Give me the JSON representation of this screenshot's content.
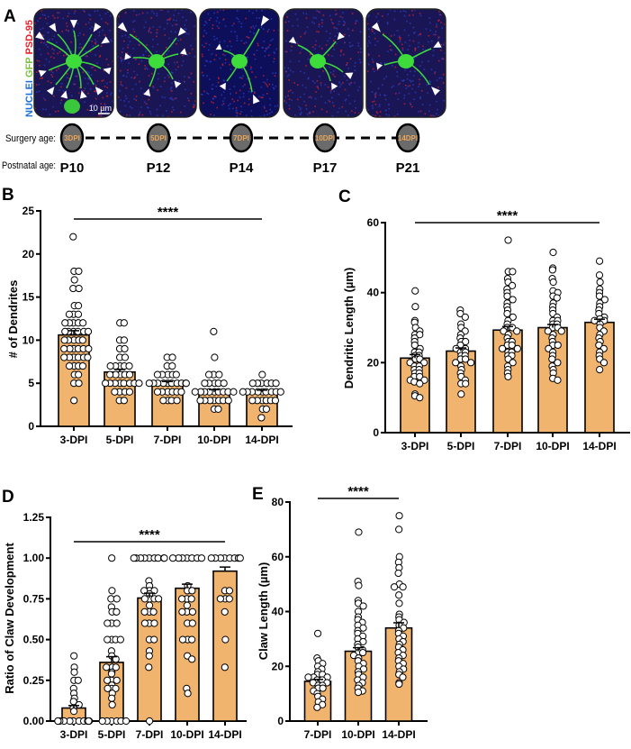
{
  "panel_labels": {
    "a": "A",
    "b": "B",
    "c": "C",
    "d": "D",
    "e": "E"
  },
  "panel_a": {
    "channel_labels": [
      {
        "text": "NUCLEI",
        "color": "#1f6fd8"
      },
      {
        "text": "GFP",
        "color": "#7cc242"
      },
      {
        "text": "PSD-95",
        "color": "#e8202a"
      }
    ],
    "scale_bar": "10 µm",
    "surgery_label": "Surgery age:",
    "postnatal_label": "Postnatal age:",
    "timepoints": [
      {
        "dpi": "3DPI",
        "age": "P10"
      },
      {
        "dpi": "5DPI",
        "age": "P12"
      },
      {
        "dpi": "7DPI",
        "age": "P14"
      },
      {
        "dpi": "10DPI",
        "age": "P17"
      },
      {
        "dpi": "14DPI",
        "age": "P21"
      }
    ]
  },
  "colors": {
    "bar": "#f0b46e",
    "point_fill": "#ffffff",
    "stroke": "#000000",
    "node_fill": "#6b6b6b",
    "node_text": "#e8a55a"
  },
  "chart_data": [
    {
      "id": "b",
      "type": "bar",
      "ylabel": "# of Dendrites",
      "ylim": [
        0,
        25
      ],
      "yticks": [
        "0",
        "5",
        "10",
        "15",
        "20",
        "25"
      ],
      "categories": [
        "3-DPI",
        "5-DPI",
        "7-DPI",
        "10-DPI",
        "14-DPI"
      ],
      "values": [
        10.6,
        6.3,
        5.0,
        4.0,
        4.0
      ],
      "sem": [
        0.5,
        0.3,
        0.2,
        0.25,
        0.2
      ],
      "significance": "****",
      "points": [
        [
          22,
          18,
          18,
          17,
          16,
          16,
          14,
          14,
          13,
          13,
          13,
          12,
          12,
          12,
          12,
          12,
          11,
          11,
          11,
          11,
          11,
          11,
          10,
          10,
          10,
          10,
          10,
          9,
          9,
          9,
          9,
          9,
          9,
          8,
          8,
          8,
          8,
          8,
          8,
          7,
          7,
          7,
          7,
          6,
          6,
          5,
          5,
          3
        ],
        [
          12,
          12,
          10,
          10,
          9,
          9,
          8,
          8,
          7,
          7,
          7,
          7,
          7,
          6,
          6,
          6,
          6,
          6,
          5,
          5,
          5,
          5,
          5,
          5,
          5,
          5,
          4,
          4,
          4,
          4,
          3,
          3
        ],
        [
          8,
          8,
          7,
          7,
          6,
          6,
          6,
          6,
          6,
          5,
          5,
          5,
          5,
          5,
          5,
          5,
          5,
          5,
          5,
          4,
          4,
          4,
          4,
          4,
          4,
          3,
          3,
          3,
          3
        ],
        [
          11,
          8,
          6,
          6,
          6,
          5,
          5,
          5,
          5,
          5,
          4,
          4,
          4,
          4,
          4,
          4,
          4,
          4,
          4,
          3,
          3,
          3,
          3,
          3,
          3,
          3,
          2,
          2
        ],
        [
          6,
          5,
          5,
          5,
          5,
          5,
          5,
          4,
          4,
          4,
          4,
          4,
          4,
          4,
          4,
          4,
          3,
          3,
          3,
          3,
          3,
          3,
          2,
          2,
          1
        ]
      ]
    },
    {
      "id": "c",
      "type": "bar",
      "ylabel": "Dendritic Length (µm)",
      "ylim": [
        0,
        60
      ],
      "yticks": [
        "0",
        "20",
        "40",
        "60"
      ],
      "categories": [
        "3-DPI",
        "5-DPI",
        "7-DPI",
        "10-DPI",
        "14-DPI"
      ],
      "values": [
        21.3,
        23.3,
        29.3,
        30.0,
        31.5
      ],
      "sem": [
        1.0,
        0.9,
        1.0,
        0.9,
        0.9
      ],
      "significance": "****",
      "points": [
        [
          40.5,
          36,
          32,
          31.5,
          30,
          29,
          28,
          28,
          27,
          26,
          25,
          24,
          23,
          23,
          22,
          22,
          21,
          21,
          20,
          20,
          19,
          19,
          18,
          18,
          17,
          17,
          16,
          16,
          15,
          15,
          14.5,
          14,
          11,
          10.5,
          10
        ],
        [
          35,
          34,
          33,
          31,
          30,
          29,
          28,
          27,
          26,
          26,
          25,
          24,
          24,
          23,
          23,
          22,
          22,
          21,
          21,
          20,
          20,
          19,
          18,
          17,
          16,
          15,
          14,
          14,
          11
        ],
        [
          55,
          46,
          46,
          44,
          43,
          42,
          41,
          40,
          39,
          38,
          37,
          36,
          35,
          34,
          33,
          32,
          31,
          30,
          30,
          29,
          29,
          28,
          27,
          26,
          26,
          25,
          25,
          24,
          24,
          23,
          23,
          22,
          22,
          21,
          20,
          19,
          18,
          17,
          16
        ],
        [
          51.5,
          47,
          46.5,
          44,
          43,
          40.5,
          40,
          39,
          38.5,
          37,
          36,
          35,
          34,
          33,
          32,
          32,
          31,
          31,
          30,
          30,
          29,
          29,
          28,
          27,
          26,
          25,
          25,
          24,
          23,
          22,
          21,
          20,
          19,
          18,
          17,
          15.5,
          15
        ],
        [
          49,
          45,
          43,
          41,
          40,
          39,
          38,
          37,
          36,
          35,
          34,
          33,
          32.5,
          32,
          32,
          31,
          30,
          29,
          28,
          27,
          26,
          25,
          24,
          23,
          22,
          21,
          20,
          18
        ]
      ]
    },
    {
      "id": "d",
      "type": "bar",
      "ylabel": "Ratio of Claw Development",
      "ylim": [
        0,
        1.25
      ],
      "yticks": [
        "0.00",
        "0.25",
        "0.50",
        "0.75",
        "1.00",
        "1.25"
      ],
      "categories": [
        "3-DPI",
        "5-DPI",
        "7-DPI",
        "10-DPI",
        "14-DPI"
      ],
      "values": [
        0.08,
        0.36,
        0.755,
        0.815,
        0.92
      ],
      "sem": [
        0.015,
        0.035,
        0.03,
        0.025,
        0.025
      ],
      "significance": "****",
      "points": [
        [
          0.4,
          0.33,
          0.3,
          0.25,
          0.25,
          0.2,
          0.17,
          0.14,
          0.12,
          0.1,
          0.08,
          0.06,
          0,
          0,
          0,
          0,
          0,
          0,
          0,
          0,
          0,
          0,
          0
        ],
        [
          1,
          0.8,
          0.75,
          0.75,
          0.7,
          0.67,
          0.67,
          0.6,
          0.6,
          0.6,
          0.5,
          0.5,
          0.5,
          0.5,
          0.43,
          0.4,
          0.38,
          0.33,
          0.33,
          0.33,
          0.3,
          0.29,
          0.25,
          0.25,
          0.25,
          0.22,
          0.2,
          0.2,
          0.2,
          0.17,
          0.14,
          0.1,
          0,
          0,
          0,
          0,
          0,
          0
        ],
        [
          1,
          1,
          1,
          1,
          1,
          1,
          1,
          1,
          1,
          0.86,
          0.83,
          0.8,
          0.8,
          0.8,
          0.78,
          0.75,
          0.75,
          0.75,
          0.75,
          0.71,
          0.67,
          0.67,
          0.67,
          0.6,
          0.6,
          0.6,
          0.5,
          0.5,
          0.43,
          0.4,
          0.33,
          0
        ],
        [
          1,
          1,
          1,
          1,
          1,
          1,
          1,
          0.83,
          0.8,
          0.8,
          0.75,
          0.75,
          0.75,
          0.71,
          0.67,
          0.67,
          0.67,
          0.6,
          0.6,
          0.5,
          0.5,
          0.5,
          0.4,
          0.38,
          0.2,
          0.17
        ],
        [
          1,
          1,
          1,
          1,
          1,
          1,
          1,
          1,
          0.8,
          0.8,
          0.75,
          0.75,
          0.75,
          0.67,
          0.5,
          0.33
        ]
      ]
    },
    {
      "id": "e",
      "type": "bar",
      "ylabel": "Claw Length (µm)",
      "ylim": [
        0,
        80
      ],
      "yticks": [
        "0",
        "20",
        "40",
        "60",
        "80"
      ],
      "categories": [
        "7-DPI",
        "10-DPI",
        "14-DPI"
      ],
      "values": [
        14.5,
        25.5,
        34.0
      ],
      "sem": [
        0.7,
        1.3,
        1.9
      ],
      "significance": "****",
      "points": [
        [
          32,
          23,
          22,
          21,
          20,
          19,
          18,
          17,
          17,
          16,
          16,
          16,
          15,
          15,
          14,
          14,
          13,
          13,
          12,
          12,
          11,
          10,
          9,
          8,
          7,
          6,
          5
        ],
        [
          69,
          51,
          49.5,
          44,
          43,
          42,
          40,
          38,
          37,
          36,
          35,
          34,
          33,
          32,
          31,
          30,
          29,
          28,
          27,
          26,
          25,
          25,
          24,
          23,
          22,
          21,
          20,
          19,
          18,
          17,
          16,
          15,
          14,
          13,
          12,
          11,
          10.5
        ],
        [
          75,
          70,
          60,
          58,
          56,
          54,
          50,
          49,
          49,
          46,
          43,
          39,
          38,
          37,
          36,
          35,
          34,
          33,
          32,
          31,
          30,
          29,
          28,
          27,
          26,
          25,
          24,
          23,
          22,
          21,
          20,
          19,
          18,
          17,
          16,
          14,
          13.5
        ]
      ]
    }
  ]
}
